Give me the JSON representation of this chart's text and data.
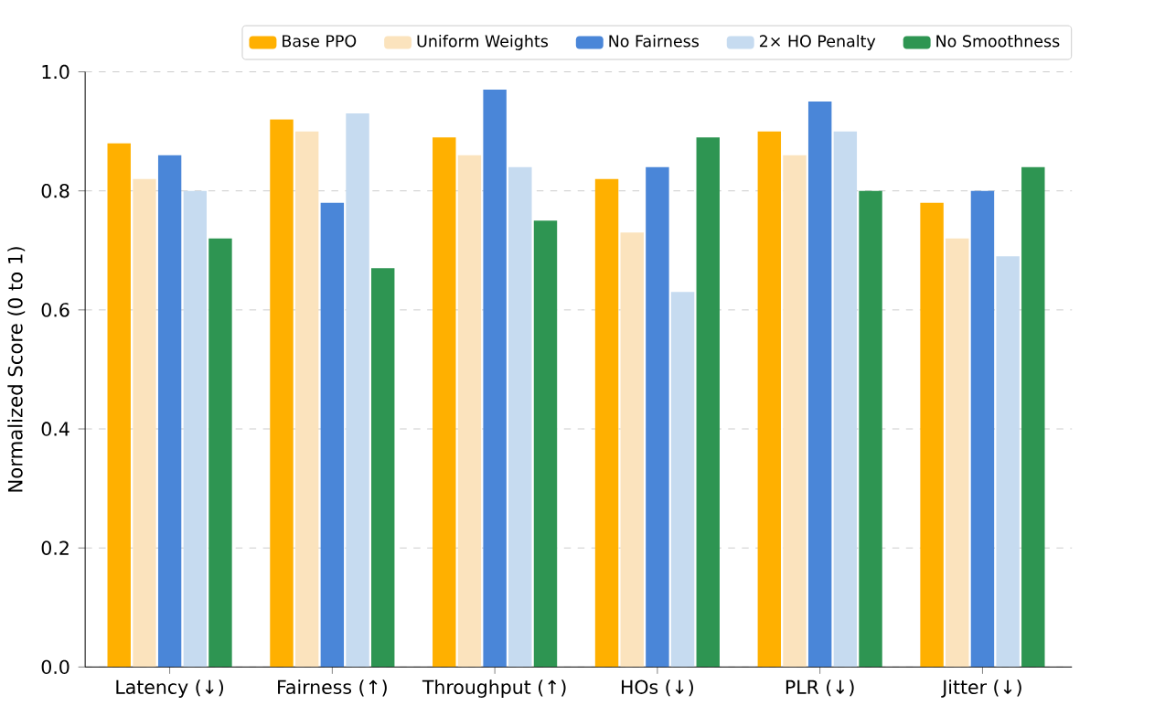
{
  "chart_data": {
    "type": "bar",
    "ylabel": "Normalized Score (0 to 1)",
    "categories": [
      "Latency (↓)",
      "Fairness (↑)",
      "Throughput (↑)",
      "HOs (↓)",
      "PLR (↓)",
      "Jitter (↓)"
    ],
    "series": [
      {
        "name": "Base PPO",
        "color": "#ffb000",
        "values": [
          0.88,
          0.92,
          0.89,
          0.82,
          0.9,
          0.78
        ]
      },
      {
        "name": "Uniform Weights",
        "color": "#fbe3bd",
        "values": [
          0.82,
          0.9,
          0.86,
          0.73,
          0.86,
          0.72
        ]
      },
      {
        "name": "No Fairness",
        "color": "#4a86d8",
        "values": [
          0.86,
          0.78,
          0.97,
          0.84,
          0.95,
          0.8
        ]
      },
      {
        "name": "2× HO Penalty",
        "color": "#c6dbf0",
        "values": [
          0.8,
          0.93,
          0.84,
          0.63,
          0.9,
          0.69
        ]
      },
      {
        "name": "No Smoothness",
        "color": "#2e9552",
        "values": [
          0.72,
          0.67,
          0.75,
          0.89,
          0.8,
          0.84
        ]
      }
    ],
    "ylim": [
      0,
      1
    ],
    "yticks": [
      {
        "value": 0,
        "label": "0.0"
      },
      0.2,
      0.4,
      0.6,
      0.8,
      {
        "value": 1,
        "label": "1.0"
      }
    ],
    "grid": "y",
    "legend": "top right"
  }
}
